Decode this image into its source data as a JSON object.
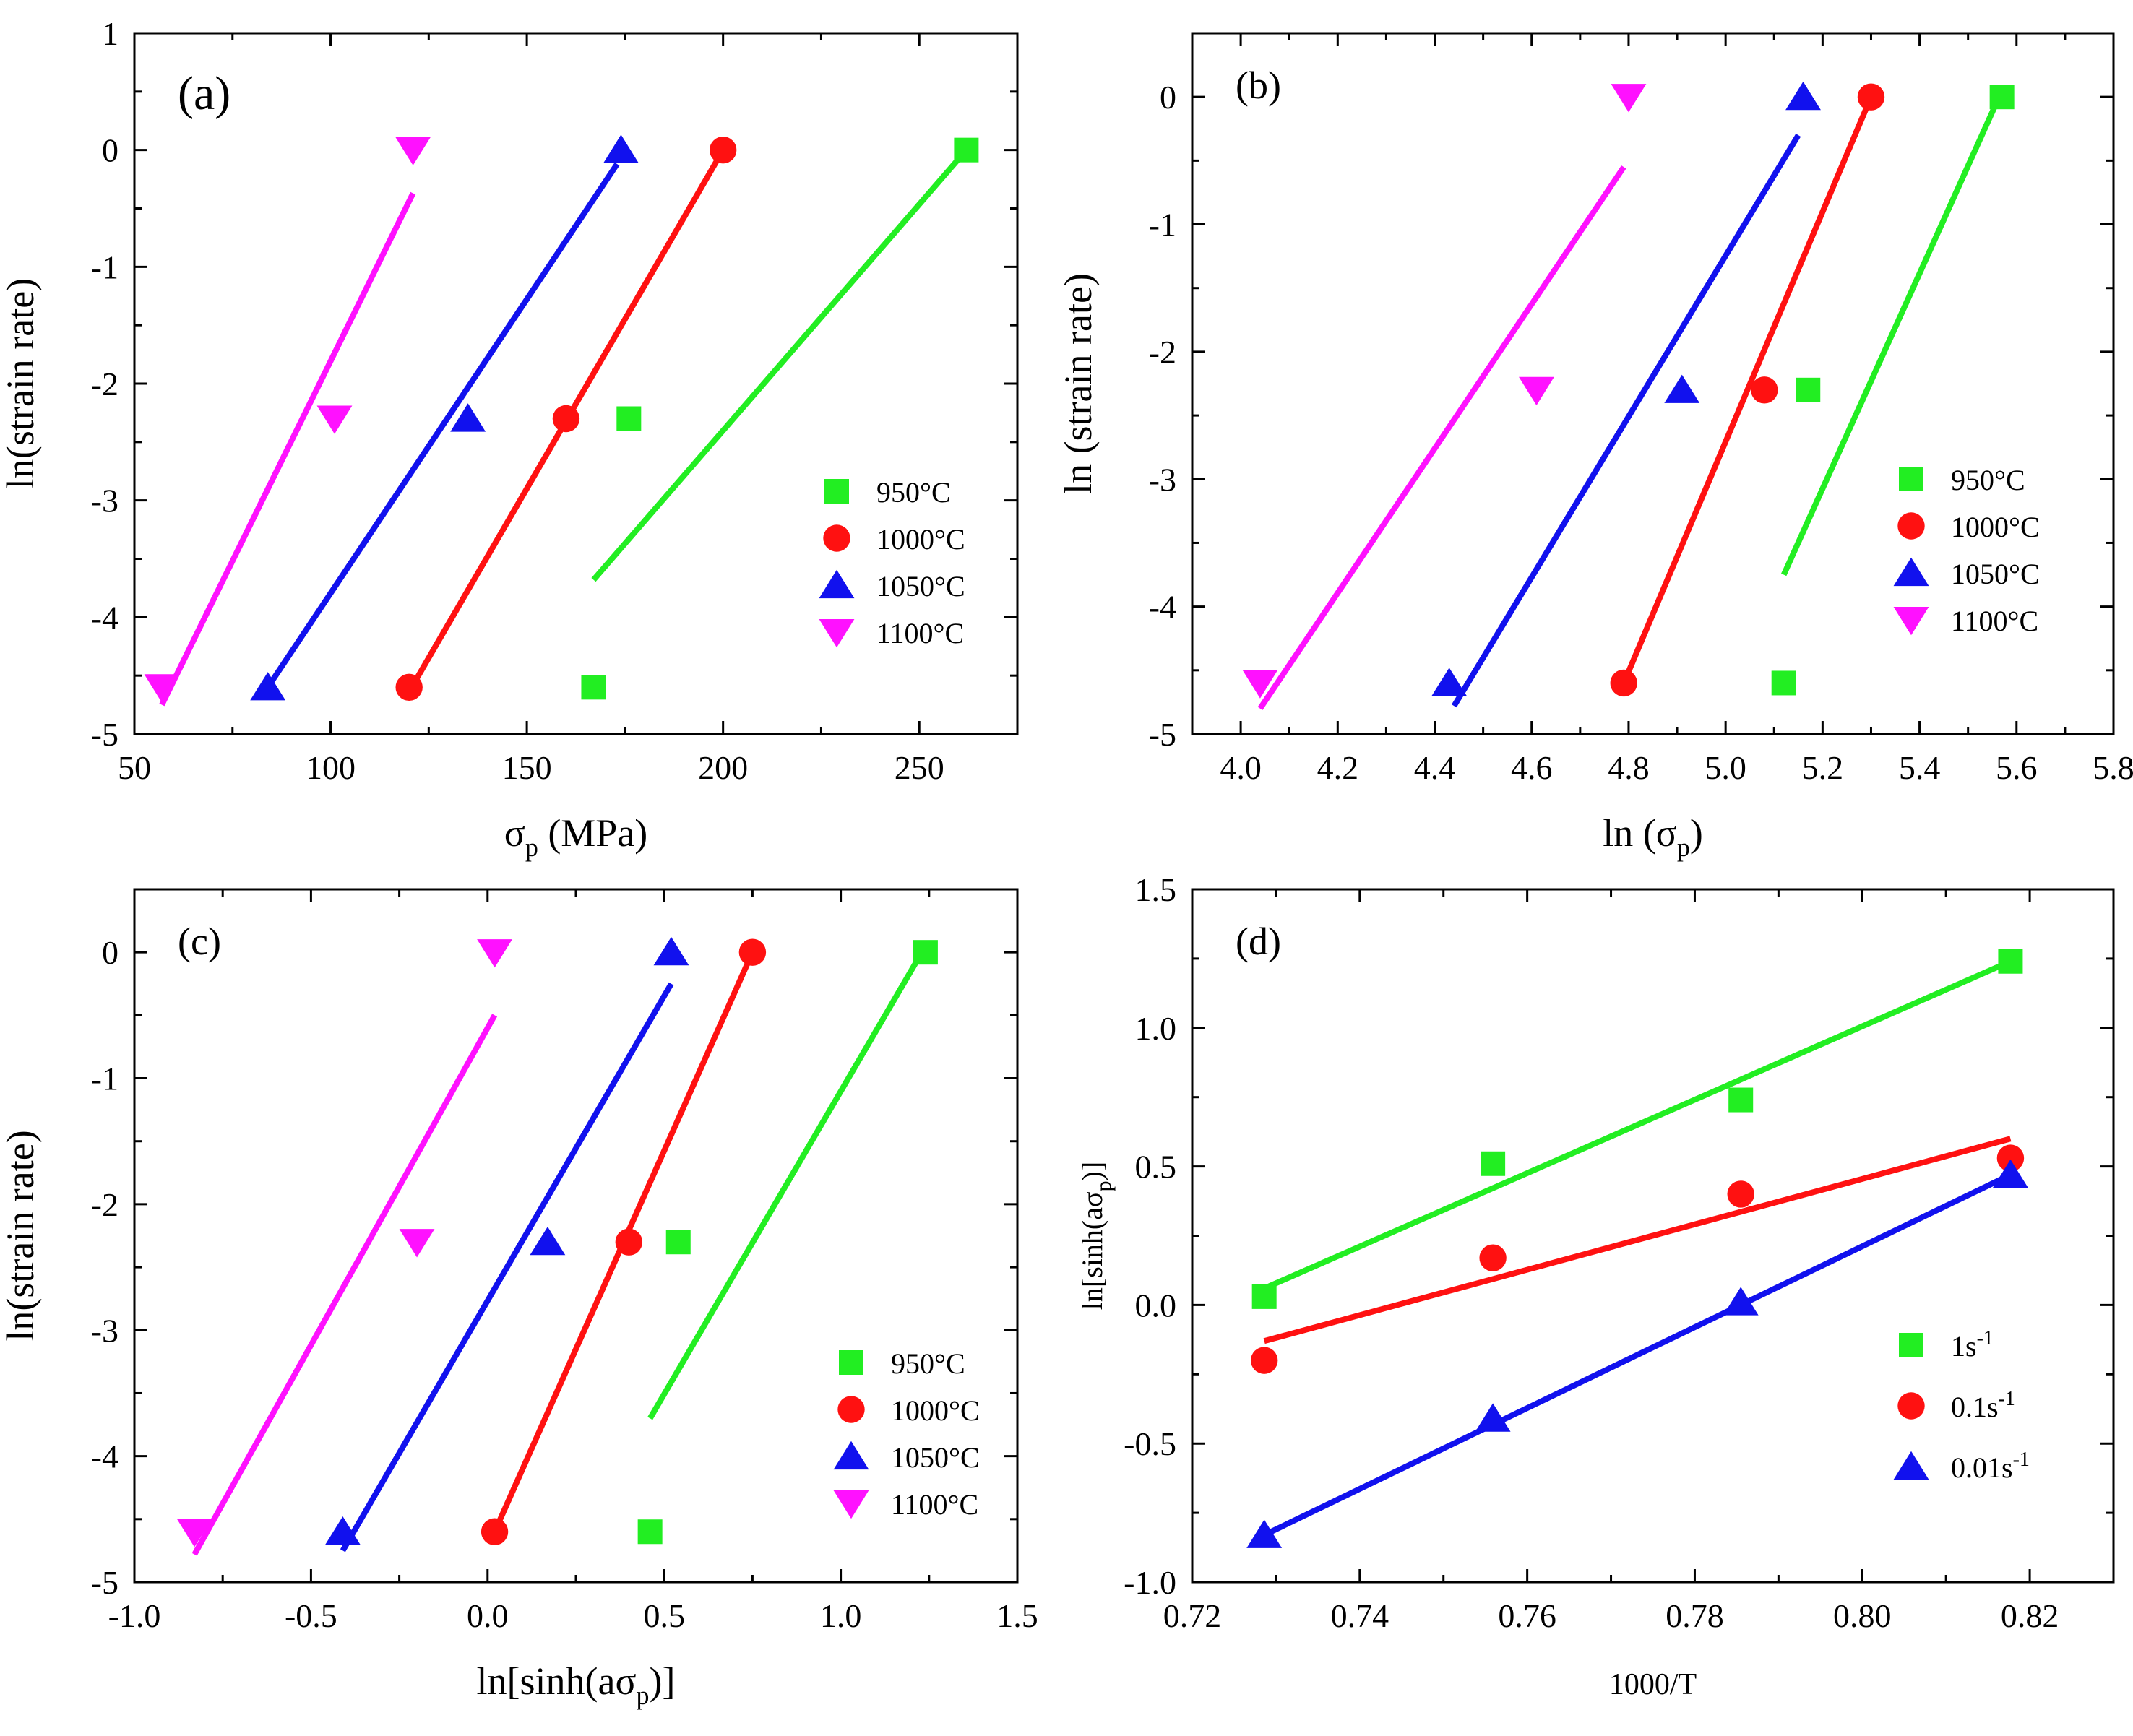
{
  "colors": {
    "green": "#22ee22",
    "red": "#ff1111",
    "blue": "#1111ee",
    "magenta": "#ff11ff"
  },
  "chart_data": [
    {
      "panel": "(a)",
      "type": "scatter",
      "xlabel": "σ",
      "xlabel_sub": "p",
      "xlabel_suffix": " (MPa)",
      "ylabel": "ln(strain rate)",
      "xlim": [
        50,
        275
      ],
      "ylim": [
        -5,
        1
      ],
      "xticks": [
        50,
        100,
        150,
        200,
        250
      ],
      "yticks": [
        1,
        0,
        -1,
        -2,
        -3,
        -4,
        -5
      ],
      "tick_decimals": 0,
      "legend_placement": "right",
      "series": [
        {
          "name": "950°C",
          "color": "green",
          "marker": "square",
          "x": [
            262,
            176,
            167
          ],
          "y": [
            0,
            -2.3,
            -4.6
          ],
          "fit": [
            [
              167,
              -3.68
            ],
            [
              262,
              0.0
            ]
          ]
        },
        {
          "name": "1000°C",
          "color": "red",
          "marker": "circle",
          "x": [
            200,
            160,
            120
          ],
          "y": [
            0,
            -2.3,
            -4.6
          ],
          "fit": [
            [
              121,
              -4.58
            ],
            [
              200,
              0.0
            ]
          ]
        },
        {
          "name": "1050°C",
          "color": "blue",
          "marker": "triangle-up",
          "x": [
            174,
            135,
            84
          ],
          "y": [
            0,
            -2.3,
            -4.6
          ],
          "fit": [
            [
              84,
              -4.6
            ],
            [
              173,
              -0.12
            ]
          ]
        },
        {
          "name": "1100°C",
          "color": "magenta",
          "marker": "triangle-down",
          "x": [
            121,
            101,
            57
          ],
          "y": [
            0,
            -2.3,
            -4.6
          ],
          "fit": [
            [
              57,
              -4.75
            ],
            [
              121,
              -0.37
            ]
          ]
        }
      ]
    },
    {
      "panel": "(b)",
      "type": "scatter",
      "xlabel": "ln (σ",
      "xlabel_sub": "p",
      "xlabel_suffix": ")",
      "ylabel": "ln (strain rate)",
      "xlim": [
        3.9,
        5.8
      ],
      "ylim": [
        -5,
        0.5
      ],
      "xticks": [
        4.0,
        4.2,
        4.4,
        4.6,
        4.8,
        5.0,
        5.2,
        5.4,
        5.6,
        5.8
      ],
      "yticks": [
        0,
        -1,
        -2,
        -3,
        -4,
        -5
      ],
      "tick_decimals": 1,
      "y_tick_decimals": 0,
      "legend_placement": "right",
      "series": [
        {
          "name": "950°C",
          "color": "green",
          "marker": "square",
          "x": [
            5.57,
            5.17,
            5.12
          ],
          "y": [
            0,
            -2.3,
            -4.6
          ],
          "fit": [
            [
              5.12,
              -3.75
            ],
            [
              5.57,
              0.05
            ]
          ]
        },
        {
          "name": "1000°C",
          "color": "red",
          "marker": "circle",
          "x": [
            5.3,
            5.08,
            4.79
          ],
          "y": [
            0,
            -2.3,
            -4.6
          ],
          "fit": [
            [
              4.79,
              -4.6
            ],
            [
              5.3,
              0.0
            ]
          ]
        },
        {
          "name": "1050°C",
          "color": "blue",
          "marker": "triangle-up",
          "x": [
            5.16,
            4.91,
            4.43
          ],
          "y": [
            0,
            -2.3,
            -4.6
          ],
          "fit": [
            [
              4.44,
              -4.78
            ],
            [
              5.15,
              -0.3
            ]
          ]
        },
        {
          "name": "1100°C",
          "color": "magenta",
          "marker": "triangle-down",
          "x": [
            4.8,
            4.61,
            4.04
          ],
          "y": [
            0,
            -2.3,
            -4.6
          ],
          "fit": [
            [
              4.04,
              -4.8
            ],
            [
              4.79,
              -0.55
            ]
          ]
        }
      ]
    },
    {
      "panel": "(c)",
      "type": "scatter",
      "xlabel": "ln[sinh(aσ",
      "xlabel_sub": "p",
      "xlabel_suffix": ")]",
      "ylabel": "ln(strain rate)",
      "xlim": [
        -1.0,
        1.5
      ],
      "ylim": [
        -5,
        0.5
      ],
      "xticks": [
        -1.0,
        -0.5,
        0.0,
        0.5,
        1.0,
        1.5
      ],
      "yticks": [
        0,
        -1,
        -2,
        -3,
        -4,
        -5
      ],
      "tick_decimals": 1,
      "y_tick_decimals": 0,
      "legend_placement": "right",
      "series": [
        {
          "name": "950°C",
          "color": "green",
          "marker": "square",
          "x": [
            1.24,
            0.54,
            0.46
          ],
          "y": [
            0,
            -2.3,
            -4.6
          ],
          "fit": [
            [
              0.46,
              -3.7
            ],
            [
              1.24,
              0.05
            ]
          ]
        },
        {
          "name": "1000°C",
          "color": "red",
          "marker": "circle",
          "x": [
            0.75,
            0.4,
            0.02
          ],
          "y": [
            0,
            -2.3,
            -4.6
          ],
          "fit": [
            [
              0.02,
              -4.6
            ],
            [
              0.75,
              0.0
            ]
          ]
        },
        {
          "name": "1050°C",
          "color": "blue",
          "marker": "triangle-up",
          "x": [
            0.52,
            0.17,
            -0.41
          ],
          "y": [
            0,
            -2.3,
            -4.6
          ],
          "fit": [
            [
              -0.41,
              -4.75
            ],
            [
              0.52,
              -0.25
            ]
          ]
        },
        {
          "name": "1100°C",
          "color": "magenta",
          "marker": "triangle-down",
          "x": [
            0.02,
            -0.2,
            -0.83
          ],
          "y": [
            0,
            -2.3,
            -4.6
          ],
          "fit": [
            [
              -0.83,
              -4.78
            ],
            [
              0.02,
              -0.5
            ]
          ]
        }
      ]
    },
    {
      "panel": "(d)",
      "type": "scatter",
      "xlabel": "1000/T",
      "xlabel_sub": "",
      "xlabel_suffix": "",
      "ylabel": "ln[sinh(aσ",
      "ylabel_sub": "p",
      "ylabel_suffix": ")]",
      "xlim": [
        0.72,
        0.83
      ],
      "ylim": [
        -1.0,
        1.5
      ],
      "xticks": [
        0.72,
        0.74,
        0.76,
        0.78,
        0.8,
        0.82
      ],
      "yticks": [
        1.5,
        1.0,
        0.5,
        0.0,
        -0.5,
        -1.0
      ],
      "tick_decimals": 2,
      "y_tick_decimals": 1,
      "legend_placement": "bottom-right",
      "series": [
        {
          "name": "1s",
          "name_sup": "-1",
          "color": "green",
          "marker": "square",
          "x": [
            0.7286,
            0.7559,
            0.7855,
            0.8177
          ],
          "y": [
            0.03,
            0.51,
            0.74,
            1.24
          ],
          "fit": [
            [
              0.7286,
              0.06
            ],
            [
              0.8177,
              1.24
            ]
          ]
        },
        {
          "name": "0.1s",
          "name_sup": "-1",
          "color": "red",
          "marker": "circle",
          "x": [
            0.7286,
            0.7559,
            0.7855,
            0.8177
          ],
          "y": [
            -0.2,
            0.17,
            0.4,
            0.53
          ],
          "fit": [
            [
              0.7286,
              -0.13
            ],
            [
              0.8177,
              0.6
            ]
          ]
        },
        {
          "name": "0.01s",
          "name_sup": "-1",
          "color": "blue",
          "marker": "triangle-up",
          "x": [
            0.7286,
            0.7559,
            0.7855,
            0.8177
          ],
          "y": [
            -0.83,
            -0.41,
            0.01,
            0.47
          ],
          "fit": [
            [
              0.7286,
              -0.83
            ],
            [
              0.8177,
              0.47
            ]
          ]
        }
      ]
    }
  ]
}
